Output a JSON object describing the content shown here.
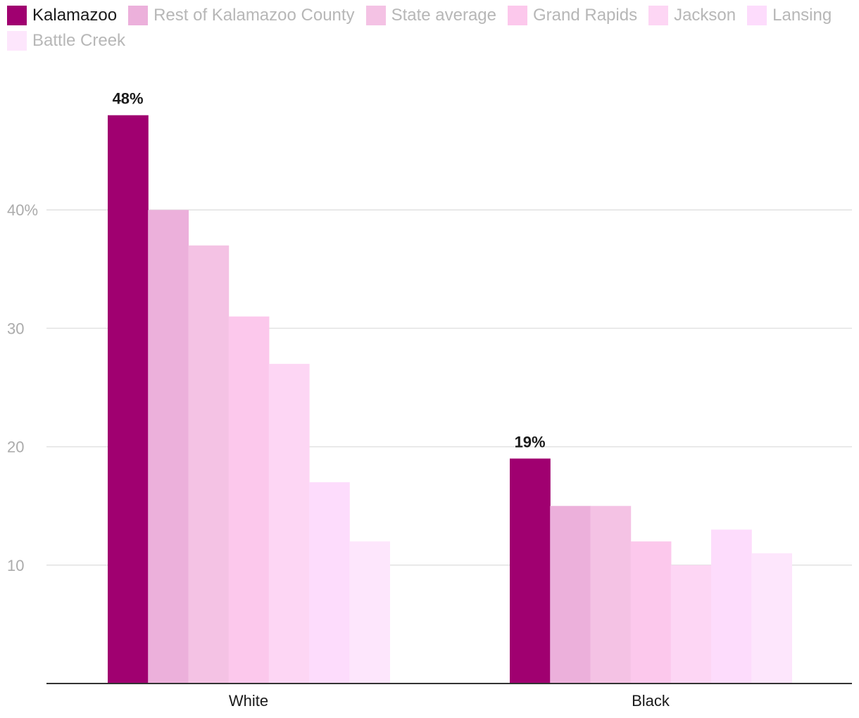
{
  "chart_data": {
    "type": "bar",
    "title": "",
    "xlabel": "",
    "ylabel": "",
    "categories": [
      "White",
      "Black"
    ],
    "series": [
      {
        "name": "Kalamazoo",
        "values": [
          48,
          19
        ],
        "color": "#a00070",
        "legend_text_color": "#1a1a1a"
      },
      {
        "name": "Rest of Kalamazoo County",
        "values": [
          40,
          15
        ],
        "color": "#ecb0db",
        "legend_text_color": "#b7b7b7"
      },
      {
        "name": "State average",
        "values": [
          37,
          15
        ],
        "color": "#f4c2e4",
        "legend_text_color": "#b7b7b7"
      },
      {
        "name": "Grand Rapids",
        "values": [
          31,
          12
        ],
        "color": "#fcc8ec",
        "legend_text_color": "#b7b7b7"
      },
      {
        "name": "Jackson",
        "values": [
          27,
          10
        ],
        "color": "#fdd6f4",
        "legend_text_color": "#b7b7b7"
      },
      {
        "name": "Lansing",
        "values": [
          17,
          13
        ],
        "color": "#fddcfc",
        "legend_text_color": "#b7b7b7"
      },
      {
        "name": "Battle Creek",
        "values": [
          12,
          11
        ],
        "color": "#fde6fc",
        "legend_text_color": "#b7b7b7"
      }
    ],
    "data_labels": [
      {
        "series": "Kalamazoo",
        "category": "White",
        "value": 48,
        "text": "48%"
      },
      {
        "series": "Kalamazoo",
        "category": "Black",
        "value": 19,
        "text": "19%"
      }
    ],
    "y_ticks": [
      {
        "value": 10,
        "label": "10"
      },
      {
        "value": 20,
        "label": "20"
      },
      {
        "value": 30,
        "label": "30"
      },
      {
        "value": 40,
        "label": "40%"
      }
    ],
    "ylim": [
      0,
      50.3
    ],
    "grid": true,
    "legend_position": "top-left",
    "colors": {
      "gridline": "#e2e2e2",
      "axis_line": "#333333",
      "tick_label": "#ababab",
      "category_label": "#1a1a1a",
      "data_label": "#1a1a1a"
    }
  }
}
